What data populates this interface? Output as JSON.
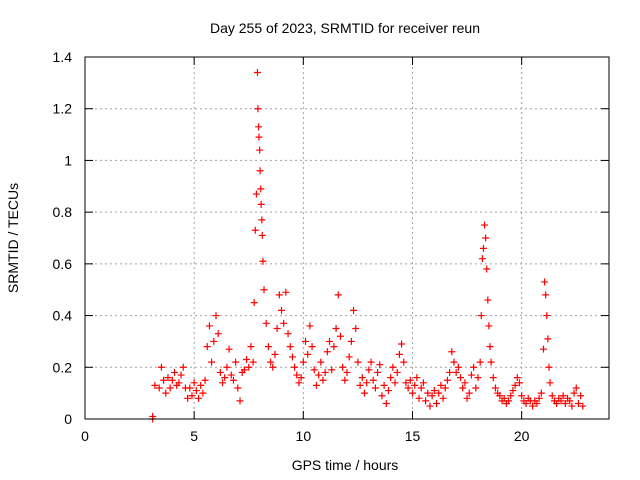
{
  "chart_data": {
    "type": "scatter",
    "title": "Day 255 of 2023, SRMTID for receiver reun",
    "xlabel": "GPS time / hours",
    "ylabel": "SRMTID / TECUs",
    "xlim": [
      0,
      24
    ],
    "ylim": [
      0,
      1.4
    ],
    "x_ticks": [
      0,
      5,
      10,
      15,
      20
    ],
    "x_tick_labels": [
      "0",
      "5",
      "10",
      "15",
      "20"
    ],
    "y_ticks": [
      0,
      0.2,
      0.4,
      0.6,
      0.8,
      1.0,
      1.2,
      1.4
    ],
    "y_tick_labels": [
      "0",
      "0.2",
      "0.4",
      "0.6",
      "0.8",
      "1",
      "1.2",
      "1.4"
    ],
    "grid": true,
    "marker": "+",
    "marker_color": "#ff0000",
    "series": [
      {
        "name": "SRMTID",
        "points": [
          [
            3.1,
            0.0
          ],
          [
            3.1,
            0.01
          ],
          [
            3.2,
            0.13
          ],
          [
            3.4,
            0.12
          ],
          [
            3.5,
            0.2
          ],
          [
            3.6,
            0.15
          ],
          [
            3.7,
            0.1
          ],
          [
            3.8,
            0.16
          ],
          [
            3.9,
            0.12
          ],
          [
            4.0,
            0.15
          ],
          [
            4.1,
            0.18
          ],
          [
            4.2,
            0.13
          ],
          [
            4.3,
            0.14
          ],
          [
            4.4,
            0.17
          ],
          [
            4.5,
            0.2
          ],
          [
            4.6,
            0.12
          ],
          [
            4.7,
            0.08
          ],
          [
            4.8,
            0.12
          ],
          [
            4.9,
            0.09
          ],
          [
            5.0,
            0.14
          ],
          [
            5.1,
            0.11
          ],
          [
            5.2,
            0.08
          ],
          [
            5.3,
            0.13
          ],
          [
            5.4,
            0.1
          ],
          [
            5.5,
            0.15
          ],
          [
            5.6,
            0.28
          ],
          [
            5.7,
            0.36
          ],
          [
            5.8,
            0.22
          ],
          [
            5.9,
            0.3
          ],
          [
            6.0,
            0.4
          ],
          [
            6.1,
            0.33
          ],
          [
            6.2,
            0.18
          ],
          [
            6.3,
            0.14
          ],
          [
            6.4,
            0.16
          ],
          [
            6.5,
            0.2
          ],
          [
            6.6,
            0.27
          ],
          [
            6.7,
            0.17
          ],
          [
            6.8,
            0.15
          ],
          [
            6.9,
            0.22
          ],
          [
            7.0,
            0.12
          ],
          [
            7.1,
            0.07
          ],
          [
            7.2,
            0.18
          ],
          [
            7.3,
            0.19
          ],
          [
            7.4,
            0.23
          ],
          [
            7.5,
            0.2
          ],
          [
            7.6,
            0.28
          ],
          [
            7.7,
            0.22
          ],
          [
            7.75,
            0.45
          ],
          [
            7.8,
            0.73
          ],
          [
            7.85,
            0.87
          ],
          [
            7.9,
            1.34
          ],
          [
            7.92,
            1.2
          ],
          [
            7.95,
            1.13
          ],
          [
            7.97,
            1.09
          ],
          [
            8.0,
            1.04
          ],
          [
            8.02,
            0.96
          ],
          [
            8.05,
            0.89
          ],
          [
            8.07,
            0.83
          ],
          [
            8.1,
            0.77
          ],
          [
            8.12,
            0.71
          ],
          [
            8.15,
            0.61
          ],
          [
            8.2,
            0.5
          ],
          [
            8.3,
            0.37
          ],
          [
            8.4,
            0.28
          ],
          [
            8.5,
            0.22
          ],
          [
            8.6,
            0.2
          ],
          [
            8.7,
            0.25
          ],
          [
            8.8,
            0.35
          ],
          [
            8.9,
            0.48
          ],
          [
            9.0,
            0.42
          ],
          [
            9.1,
            0.37
          ],
          [
            9.2,
            0.49
          ],
          [
            9.3,
            0.33
          ],
          [
            9.4,
            0.28
          ],
          [
            9.5,
            0.24
          ],
          [
            9.6,
            0.2
          ],
          [
            9.7,
            0.17
          ],
          [
            9.8,
            0.14
          ],
          [
            9.9,
            0.16
          ],
          [
            10.0,
            0.22
          ],
          [
            10.1,
            0.3
          ],
          [
            10.2,
            0.25
          ],
          [
            10.3,
            0.36
          ],
          [
            10.4,
            0.28
          ],
          [
            10.5,
            0.19
          ],
          [
            10.6,
            0.13
          ],
          [
            10.7,
            0.17
          ],
          [
            10.8,
            0.22
          ],
          [
            10.9,
            0.15
          ],
          [
            11.0,
            0.18
          ],
          [
            11.1,
            0.26
          ],
          [
            11.2,
            0.3
          ],
          [
            11.3,
            0.19
          ],
          [
            11.4,
            0.28
          ],
          [
            11.5,
            0.35
          ],
          [
            11.6,
            0.48
          ],
          [
            11.7,
            0.32
          ],
          [
            11.8,
            0.2
          ],
          [
            11.9,
            0.15
          ],
          [
            12.0,
            0.18
          ],
          [
            12.1,
            0.24
          ],
          [
            12.2,
            0.3
          ],
          [
            12.3,
            0.42
          ],
          [
            12.4,
            0.35
          ],
          [
            12.5,
            0.22
          ],
          [
            12.6,
            0.13
          ],
          [
            12.7,
            0.16
          ],
          [
            12.8,
            0.1
          ],
          [
            12.9,
            0.14
          ],
          [
            13.0,
            0.19
          ],
          [
            13.1,
            0.22
          ],
          [
            13.2,
            0.15
          ],
          [
            13.3,
            0.12
          ],
          [
            13.4,
            0.18
          ],
          [
            13.5,
            0.21
          ],
          [
            13.6,
            0.09
          ],
          [
            13.7,
            0.13
          ],
          [
            13.8,
            0.06
          ],
          [
            13.9,
            0.11
          ],
          [
            14.0,
            0.16
          ],
          [
            14.1,
            0.2
          ],
          [
            14.2,
            0.14
          ],
          [
            14.3,
            0.18
          ],
          [
            14.4,
            0.25
          ],
          [
            14.5,
            0.29
          ],
          [
            14.6,
            0.22
          ],
          [
            14.7,
            0.14
          ],
          [
            14.8,
            0.12
          ],
          [
            14.9,
            0.15
          ],
          [
            15.0,
            0.1
          ],
          [
            15.1,
            0.13
          ],
          [
            15.2,
            0.16
          ],
          [
            15.3,
            0.08
          ],
          [
            15.4,
            0.12
          ],
          [
            15.5,
            0.14
          ],
          [
            15.6,
            0.07
          ],
          [
            15.7,
            0.1
          ],
          [
            15.8,
            0.05
          ],
          [
            15.9,
            0.09
          ],
          [
            16.0,
            0.11
          ],
          [
            16.1,
            0.06
          ],
          [
            16.2,
            0.1
          ],
          [
            16.3,
            0.13
          ],
          [
            16.4,
            0.08
          ],
          [
            16.5,
            0.12
          ],
          [
            16.6,
            0.15
          ],
          [
            16.7,
            0.18
          ],
          [
            16.8,
            0.26
          ],
          [
            16.9,
            0.22
          ],
          [
            17.0,
            0.18
          ],
          [
            17.1,
            0.2
          ],
          [
            17.2,
            0.16
          ],
          [
            17.3,
            0.12
          ],
          [
            17.4,
            0.14
          ],
          [
            17.5,
            0.08
          ],
          [
            17.6,
            0.1
          ],
          [
            17.7,
            0.17
          ],
          [
            17.8,
            0.2
          ],
          [
            17.9,
            0.12
          ],
          [
            18.0,
            0.16
          ],
          [
            18.1,
            0.22
          ],
          [
            18.15,
            0.4
          ],
          [
            18.2,
            0.62
          ],
          [
            18.25,
            0.66
          ],
          [
            18.3,
            0.75
          ],
          [
            18.35,
            0.7
          ],
          [
            18.4,
            0.58
          ],
          [
            18.45,
            0.46
          ],
          [
            18.5,
            0.36
          ],
          [
            18.55,
            0.28
          ],
          [
            18.6,
            0.22
          ],
          [
            18.7,
            0.16
          ],
          [
            18.8,
            0.12
          ],
          [
            18.9,
            0.1
          ],
          [
            19.0,
            0.09
          ],
          [
            19.1,
            0.07
          ],
          [
            19.2,
            0.08
          ],
          [
            19.3,
            0.06
          ],
          [
            19.4,
            0.07
          ],
          [
            19.5,
            0.09
          ],
          [
            19.6,
            0.11
          ],
          [
            19.7,
            0.13
          ],
          [
            19.8,
            0.16
          ],
          [
            19.9,
            0.14
          ],
          [
            20.0,
            0.09
          ],
          [
            20.1,
            0.07
          ],
          [
            20.2,
            0.06
          ],
          [
            20.3,
            0.08
          ],
          [
            20.4,
            0.07
          ],
          [
            20.5,
            0.05
          ],
          [
            20.6,
            0.07
          ],
          [
            20.7,
            0.06
          ],
          [
            20.8,
            0.08
          ],
          [
            20.9,
            0.1
          ],
          [
            21.0,
            0.27
          ],
          [
            21.05,
            0.53
          ],
          [
            21.1,
            0.48
          ],
          [
            21.15,
            0.4
          ],
          [
            21.2,
            0.31
          ],
          [
            21.25,
            0.2
          ],
          [
            21.3,
            0.14
          ],
          [
            21.4,
            0.09
          ],
          [
            21.5,
            0.07
          ],
          [
            21.6,
            0.06
          ],
          [
            21.7,
            0.08
          ],
          [
            21.8,
            0.07
          ],
          [
            21.9,
            0.09
          ],
          [
            22.0,
            0.06
          ],
          [
            22.1,
            0.08
          ],
          [
            22.2,
            0.07
          ],
          [
            22.3,
            0.05
          ],
          [
            22.4,
            0.1
          ],
          [
            22.5,
            0.12
          ],
          [
            22.6,
            0.06
          ],
          [
            22.7,
            0.09
          ],
          [
            22.8,
            0.05
          ]
        ]
      }
    ]
  }
}
